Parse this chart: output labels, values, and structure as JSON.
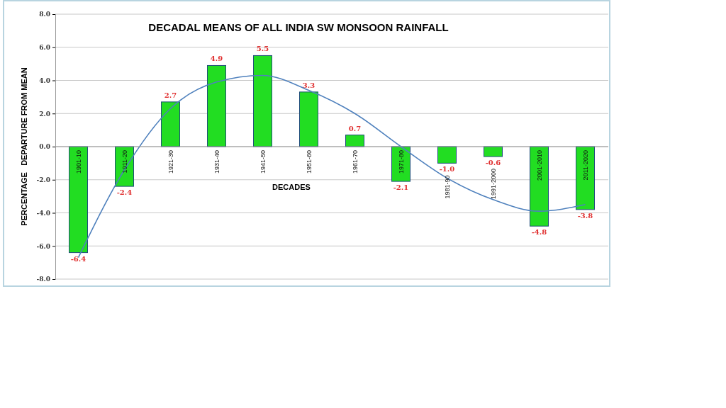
{
  "chart_data": {
    "type": "bar",
    "title": "DECADAL MEANS OF ALL INDIA SW MONSOON RAINFALL",
    "xlabel": "DECADES",
    "ylabel": "PERCENTAGE   DEPARTURE FROM MEAN",
    "categories": [
      "1901-10",
      "1911-20",
      "1921-30",
      "1931-40",
      "1941-50",
      "1951-60",
      "1961-70",
      "1971-80",
      "1981-90",
      "1991-2000",
      "2001-2010",
      "2011-2020"
    ],
    "series": [
      {
        "color": "#22dd22",
        "values": [
          -6.4,
          -2.4,
          2.7,
          4.9,
          5.5,
          3.3,
          0.7,
          -2.1,
          -1.0,
          -0.6,
          -4.8,
          -3.8
        ],
        "value_labels": [
          "-6.4",
          "-2.4",
          "2.7",
          "4.9",
          "5.5",
          "3.3",
          "0.7",
          "-2.1",
          "-1.0",
          "-0.6",
          "-4.8",
          "-3.8"
        ]
      },
      {
        "type": "line",
        "color": "#4f81bd",
        "values": [
          -6.7,
          -1.4,
          2.3,
          3.9,
          4.3,
          3.4,
          2.0,
          0.0,
          -1.9,
          -3.2,
          -3.9,
          -3.5
        ]
      }
    ],
    "ylim": [
      -8,
      8
    ],
    "yticks": [
      {
        "value": -8,
        "label": "-8.0"
      },
      {
        "value": -6,
        "label": "-6.0"
      },
      {
        "value": -4,
        "label": "-4.0"
      },
      {
        "value": -2,
        "label": "-2.0"
      },
      {
        "value": 0,
        "label": "0.0"
      },
      {
        "value": 2,
        "label": "2.0"
      },
      {
        "value": 4,
        "label": "4.0"
      },
      {
        "value": 6,
        "label": "6.0"
      },
      {
        "value": 8,
        "label": "8.0"
      }
    ],
    "grid": "y",
    "marker": "none",
    "line_style": "solid"
  }
}
